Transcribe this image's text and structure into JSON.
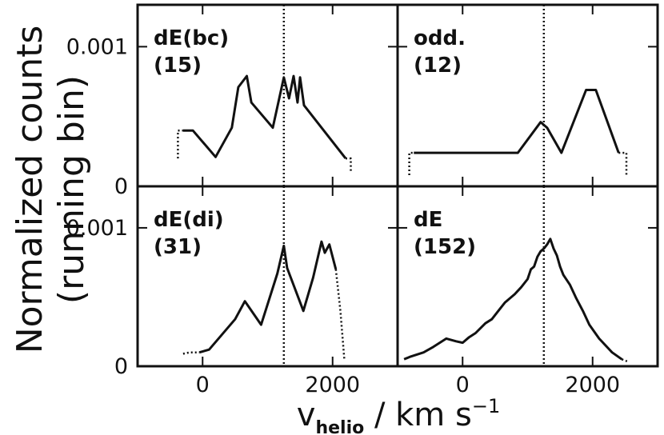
{
  "figure": {
    "ylabel_line1": "Normalized counts",
    "ylabel_line2": "(running bin)",
    "xlabel_main": "v",
    "xlabel_sub": "helio",
    "xlabel_units": " / km s",
    "xlabel_exp": "−1"
  },
  "chart_data": [
    {
      "type": "line",
      "panel": "top-left",
      "label": "dE(bc)",
      "count": "(15)",
      "xlim": [
        -1000,
        3000
      ],
      "ylim": [
        0,
        0.0013
      ],
      "xticks": [
        0,
        2000
      ],
      "xtick_labels": [
        "0",
        "2000"
      ],
      "yticks": [
        0,
        0.001
      ],
      "ytick_labels": [
        "0",
        "0.001"
      ],
      "vline_x": 1250,
      "x_solid": [
        -300,
        -150,
        200,
        450,
        550,
        680,
        750,
        1080,
        1250,
        1330,
        1400,
        1460,
        1500,
        1560,
        2200
      ],
      "y_solid": [
        0.0004,
        0.0004,
        0.00021,
        0.00042,
        0.00071,
        0.00079,
        0.0006,
        0.00042,
        0.00078,
        0.00063,
        0.00079,
        0.0006,
        0.00078,
        0.00058,
        0.0002
      ],
      "dotted_left_x": [
        -380,
        -380,
        -300
      ],
      "dotted_left_y": [
        0.0002,
        0.0004,
        0.0004
      ],
      "dotted_right_x": [
        2200,
        2280,
        2280
      ],
      "dotted_right_y": [
        0.0002,
        0.0002,
        0.0001
      ]
    },
    {
      "type": "line",
      "panel": "top-right",
      "label": "odd.",
      "count": "(12)",
      "xlim": [
        -1000,
        3000
      ],
      "ylim": [
        0,
        0.0013
      ],
      "xticks": [
        0,
        2000
      ],
      "xtick_labels": [
        "0",
        "2000"
      ],
      "yticks": [
        0,
        0.001
      ],
      "ytick_labels": [
        "0",
        "0.001"
      ],
      "vline_x": 1250,
      "x_solid": [
        -750,
        850,
        1200,
        1300,
        1520,
        1900,
        2050,
        2400
      ],
      "y_solid": [
        0.00024,
        0.00024,
        0.00046,
        0.00042,
        0.00024,
        0.00069,
        0.00069,
        0.00024
      ],
      "dotted_left_x": [
        -820,
        -820,
        -750
      ],
      "dotted_left_y": [
        8e-05,
        0.00024,
        0.00024
      ],
      "dotted_right_x": [
        2400,
        2520,
        2520
      ],
      "dotted_right_y": [
        0.00024,
        0.00024,
        8e-05
      ]
    },
    {
      "type": "line",
      "panel": "bottom-left",
      "label": "dE(di)",
      "count": "(31)",
      "xlim": [
        -1000,
        3000
      ],
      "ylim": [
        0,
        0.0013
      ],
      "xticks": [
        0,
        2000
      ],
      "xtick_labels": [
        "0",
        "2000"
      ],
      "yticks": [
        0,
        0.001
      ],
      "ytick_labels": [
        "0",
        "0.001"
      ],
      "vline_x": 1250,
      "x_solid": [
        -50,
        100,
        500,
        650,
        900,
        1150,
        1250,
        1300,
        1550,
        1700,
        1830,
        1880,
        1950,
        2050
      ],
      "y_solid": [
        0.0001,
        0.00012,
        0.00034,
        0.00047,
        0.0003,
        0.00067,
        0.00087,
        0.00071,
        0.0004,
        0.00064,
        0.0009,
        0.00082,
        0.00088,
        0.0007
      ],
      "dotted_left_x": [
        -300,
        -200,
        -50
      ],
      "dotted_left_y": [
        9e-05,
        0.0001,
        0.0001
      ],
      "dotted_right_x": [
        2050,
        2120,
        2180
      ],
      "dotted_right_y": [
        0.0007,
        0.0004,
        5e-05
      ]
    },
    {
      "type": "line",
      "panel": "bottom-right",
      "label": "dE",
      "count": "(152)",
      "xlim": [
        -1000,
        3000
      ],
      "ylim": [
        0,
        0.0013
      ],
      "xticks": [
        0,
        2000
      ],
      "xtick_labels": [
        "0",
        "2000"
      ],
      "yticks": [
        0,
        0.001
      ],
      "ytick_labels": [
        "0",
        "0.001"
      ],
      "vline_x": 1250,
      "x_solid": [
        -900,
        -800,
        -600,
        -450,
        -250,
        -100,
        0,
        100,
        200,
        350,
        450,
        550,
        650,
        800,
        900,
        1000,
        1050,
        1100,
        1150,
        1200,
        1250,
        1300,
        1350,
        1400,
        1450,
        1500,
        1550,
        1650,
        1750,
        1850,
        1950,
        2100,
        2300,
        2450
      ],
      "y_solid": [
        5e-05,
        7e-05,
        0.0001,
        0.00014,
        0.0002,
        0.00018,
        0.00017,
        0.00021,
        0.00024,
        0.00031,
        0.00034,
        0.0004,
        0.00046,
        0.00052,
        0.00057,
        0.00063,
        0.0007,
        0.00072,
        0.00079,
        0.00083,
        0.00085,
        0.00088,
        0.00092,
        0.00085,
        0.0008,
        0.00072,
        0.00066,
        0.00059,
        0.00049,
        0.0004,
        0.0003,
        0.0002,
        0.0001,
        5e-05
      ],
      "dotted_left_x": [],
      "dotted_left_y": [],
      "dotted_right_x": [
        2450,
        2560
      ],
      "dotted_right_y": [
        5e-05,
        3e-05
      ]
    }
  ]
}
